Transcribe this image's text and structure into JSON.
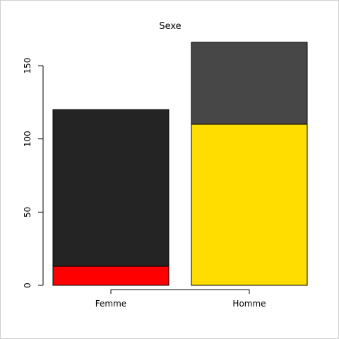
{
  "chart_data": {
    "type": "bar",
    "title": "Sexe",
    "xlabel": "",
    "ylabel": "",
    "categories": [
      "Femme",
      "Homme"
    ],
    "ylim": [
      0,
      170
    ],
    "yticks": [
      0,
      50,
      100,
      150
    ],
    "stacked": true,
    "series": [
      {
        "values": [
          13,
          110
        ],
        "colors": [
          "#ff0000",
          "#ffdd00"
        ]
      },
      {
        "values": [
          107,
          56
        ],
        "colors": [
          "#242424",
          "#474747"
        ]
      }
    ],
    "grid": false,
    "legend": "none"
  }
}
